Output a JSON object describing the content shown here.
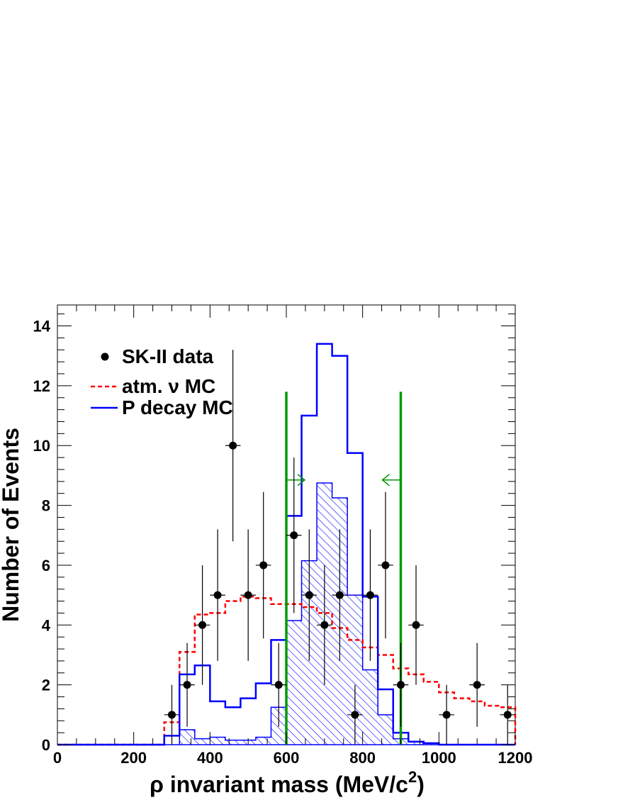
{
  "chart_data": {
    "type": "histogram",
    "xlabel_parts": [
      "ρ invariant mass (MeV/c",
      "2",
      ")"
    ],
    "ylabel": "Number of Events",
    "xlim": [
      0,
      1200
    ],
    "ylim": [
      0,
      14.7
    ],
    "x_ticks": [
      "0",
      "200",
      "400",
      "600",
      "800",
      "1000",
      "1200"
    ],
    "y_ticks": [
      "0",
      "2",
      "4",
      "6",
      "8",
      "10",
      "12",
      "14"
    ],
    "bin_width": 40,
    "bin_edges_start": 0,
    "legend": {
      "placement": "top-left",
      "entries": [
        {
          "label": "SK-II data",
          "style": "marker"
        },
        {
          "label": "atm. ν MC",
          "style": "dashed",
          "color": "#ff0000"
        },
        {
          "label": "P decay MC",
          "style": "solid",
          "color": "#0000ff"
        }
      ]
    },
    "cut_lines": {
      "values": [
        600,
        900
      ],
      "color": "#009900",
      "arrow_y": 8.85
    },
    "series": [
      {
        "name": "SK-II data",
        "kind": "points",
        "color": "#000000",
        "points": [
          {
            "x": 300,
            "y": 1,
            "err_lo": 1,
            "err_hi": 1
          },
          {
            "x": 340,
            "y": 2,
            "err_lo": 1.4,
            "err_hi": 1.4
          },
          {
            "x": 380,
            "y": 4,
            "err_lo": 2,
            "err_hi": 2
          },
          {
            "x": 420,
            "y": 5,
            "err_lo": 2.2,
            "err_hi": 2.2
          },
          {
            "x": 460,
            "y": 10,
            "err_lo": 3.2,
            "err_hi": 3.2
          },
          {
            "x": 500,
            "y": 5,
            "err_lo": 2.2,
            "err_hi": 2.2
          },
          {
            "x": 540,
            "y": 6,
            "err_lo": 2.45,
            "err_hi": 2.45
          },
          {
            "x": 580,
            "y": 2,
            "err_lo": 1.4,
            "err_hi": 1.4
          },
          {
            "x": 620,
            "y": 7,
            "err_lo": 2.6,
            "err_hi": 2.6
          },
          {
            "x": 660,
            "y": 5,
            "err_lo": 2.2,
            "err_hi": 2.2
          },
          {
            "x": 700,
            "y": 4,
            "err_lo": 2,
            "err_hi": 2
          },
          {
            "x": 740,
            "y": 5,
            "err_lo": 2.2,
            "err_hi": 2.2
          },
          {
            "x": 780,
            "y": 1,
            "err_lo": 1,
            "err_hi": 1
          },
          {
            "x": 820,
            "y": 5,
            "err_lo": 2.2,
            "err_hi": 2.2
          },
          {
            "x": 860,
            "y": 6,
            "err_lo": 2.45,
            "err_hi": 2.45
          },
          {
            "x": 900,
            "y": 2,
            "err_lo": 1.4,
            "err_hi": 1.4
          },
          {
            "x": 940,
            "y": 4,
            "err_lo": 2,
            "err_hi": 2
          },
          {
            "x": 1020,
            "y": 1,
            "err_lo": 1,
            "err_hi": 1
          },
          {
            "x": 1100,
            "y": 2,
            "err_lo": 1.4,
            "err_hi": 1.4
          },
          {
            "x": 1180,
            "y": 1,
            "err_lo": 1,
            "err_hi": 1
          }
        ]
      },
      {
        "name": "atm. ν MC",
        "kind": "step-dashed",
        "color": "#ff0000",
        "values": [
          0,
          0,
          0,
          0,
          0,
          0,
          0,
          0.75,
          3.1,
          4.35,
          4.4,
          4.8,
          4.95,
          4.9,
          4.7,
          4.7,
          4.6,
          4.4,
          3.9,
          3.5,
          3.25,
          3.0,
          2.55,
          2.35,
          2.1,
          1.75,
          1.55,
          1.45,
          1.3,
          1.25
        ]
      },
      {
        "name": "P decay MC",
        "kind": "step-solid",
        "color": "#0000ff",
        "values": [
          0,
          0,
          0,
          0,
          0,
          0,
          0,
          0.3,
          2.35,
          2.65,
          1.45,
          1.25,
          1.55,
          2.05,
          3.5,
          7.65,
          11.0,
          13.4,
          13.0,
          9.75,
          4.95,
          1.85,
          0.4,
          0.1,
          0.05,
          0,
          0,
          0,
          0,
          0
        ]
      },
      {
        "name": "",
        "kind": "step-hatched",
        "color": "#0000ff",
        "values": [
          0,
          0,
          0,
          0,
          0,
          0,
          0,
          0,
          0.5,
          0.2,
          0.25,
          0.15,
          0.15,
          0.25,
          1.25,
          4.15,
          6.15,
          8.75,
          8.25,
          5.0,
          2.5,
          1.0,
          0.2,
          0.1,
          0.05,
          0,
          0,
          0,
          0,
          0
        ]
      }
    ]
  }
}
